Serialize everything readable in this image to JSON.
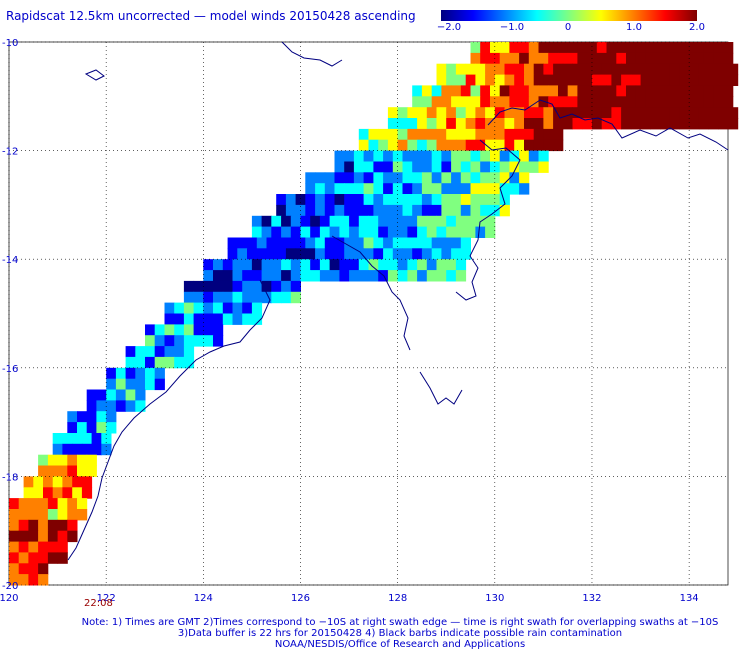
{
  "title": "Rapidscat 12.5km uncorrected — model winds 20150428 ascending",
  "colorbar": {
    "ticks": [
      "−2.0",
      "−1.0",
      "0",
      "1.0",
      "2.0"
    ],
    "colors": [
      "#00007f",
      "#0000ff",
      "#0080ff",
      "#00ffff",
      "#80ff80",
      "#ffff00",
      "#ff8000",
      "#ff0000",
      "#7f0000"
    ]
  },
  "time_label": "22:08",
  "notes": [
    "Note: 1) Times are GMT 2)Times correspond to −10S at right swath edge — time is right swath for overlapping swaths at −10S",
    "3)Data buffer is 22 hrs for 20150428 4) Black barbs indicate possible rain contamination",
    "NOAA/NESDIS/Office of Research and Applications"
  ],
  "chart_data": {
    "type": "heatmap",
    "title": "Rapidscat 12.5km uncorrected — model winds 20150428 ascending",
    "xlabel": "",
    "ylabel": "",
    "x_ticks": [
      "120",
      "122",
      "124",
      "126",
      "128",
      "130",
      "132",
      "134"
    ],
    "y_ticks": [
      "-10",
      "-12",
      "-14",
      "-16",
      "-18",
      "-20"
    ],
    "xlim": [
      120,
      134.8
    ],
    "ylim": [
      -20,
      -10
    ],
    "value_range": [
      -2.0,
      2.0
    ],
    "swath": [
      {
        "lat": -10.2,
        "lon_start": 129.5,
        "lon_end": 134.8
      },
      {
        "lat": -10.6,
        "lon_start": 128.8,
        "lon_end": 134.8
      },
      {
        "lat": -11.0,
        "lon_start": 128.3,
        "lon_end": 134.8
      },
      {
        "lat": -11.4,
        "lon_start": 127.8,
        "lon_end": 134.8
      },
      {
        "lat": -11.8,
        "lon_start": 127.2,
        "lon_end": 131.3
      },
      {
        "lat": -12.2,
        "lon_start": 126.7,
        "lon_end": 130.9
      },
      {
        "lat": -12.6,
        "lon_start": 126.1,
        "lon_end": 130.6
      },
      {
        "lat": -13.0,
        "lon_start": 125.5,
        "lon_end": 130.2
      },
      {
        "lat": -13.4,
        "lon_start": 125.0,
        "lon_end": 129.9
      },
      {
        "lat": -13.8,
        "lon_start": 124.5,
        "lon_end": 129.4
      },
      {
        "lat": -14.2,
        "lon_start": 124.0,
        "lon_end": 129.3
      },
      {
        "lat": -14.6,
        "lon_start": 123.6,
        "lon_end": 126.0
      },
      {
        "lat": -15.0,
        "lon_start": 123.2,
        "lon_end": 125.2
      },
      {
        "lat": -15.4,
        "lon_start": 122.8,
        "lon_end": 124.4
      },
      {
        "lat": -15.8,
        "lon_start": 122.4,
        "lon_end": 123.8
      },
      {
        "lat": -16.2,
        "lon_start": 122.0,
        "lon_end": 123.2
      },
      {
        "lat": -16.6,
        "lon_start": 121.6,
        "lon_end": 122.7
      },
      {
        "lat": -17.0,
        "lon_start": 121.2,
        "lon_end": 122.2
      },
      {
        "lat": -17.4,
        "lon_start": 120.9,
        "lon_end": 122.0
      },
      {
        "lat": -17.8,
        "lon_start": 120.6,
        "lon_end": 121.8
      },
      {
        "lat": -18.2,
        "lon_start": 120.3,
        "lon_end": 121.6
      },
      {
        "lat": -18.6,
        "lon_start": 120.0,
        "lon_end": 121.5
      },
      {
        "lat": -19.0,
        "lon_start": 120.0,
        "lon_end": 121.4
      },
      {
        "lat": -19.4,
        "lon_start": 120.0,
        "lon_end": 121.2
      },
      {
        "lat": -19.8,
        "lon_start": 120.0,
        "lon_end": 120.7
      }
    ]
  }
}
